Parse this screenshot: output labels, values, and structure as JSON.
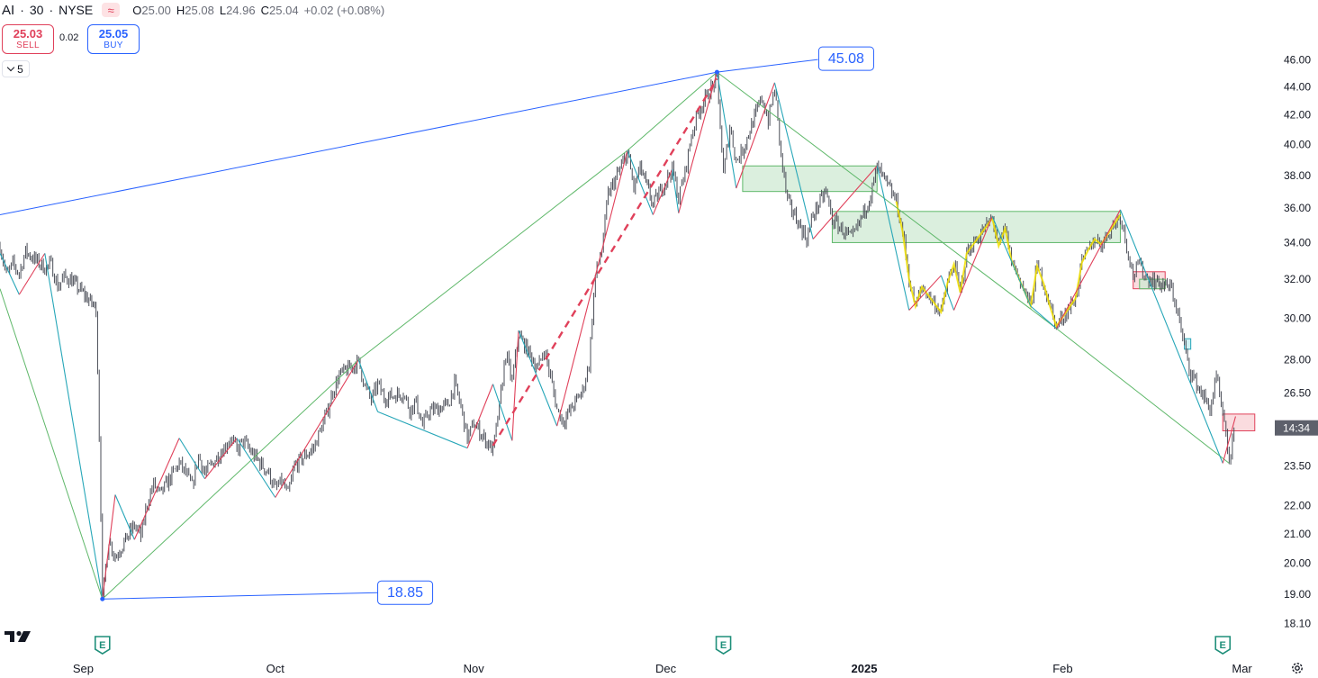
{
  "header": {
    "symbol": "AI",
    "interval": "30",
    "exchange": "NYSE",
    "wave_icon": "wave-icon",
    "ohlc": {
      "o_label": "O",
      "o": "25.00",
      "h_label": "H",
      "h": "25.08",
      "l_label": "L",
      "l": "24.96",
      "c_label": "C",
      "c": "25.04",
      "change": "+0.02 (+0.08%)"
    }
  },
  "trade": {
    "sell_price": "25.03",
    "sell_label": "SELL",
    "spread": "0.02",
    "buy_price": "25.05",
    "buy_label": "BUY"
  },
  "collapse": {
    "count": "5"
  },
  "colors": {
    "candle": "#4a4d57",
    "up_leg": "#e0405a",
    "down_leg": "#26a6b8",
    "major": "#5fb86a",
    "trend": "#2962ff",
    "yellow": "#f2e000",
    "zone_green": "#cfead3",
    "zone_red": "#f8d0d4"
  },
  "chart_data": {
    "type": "line",
    "y_scale": "log",
    "ylim": [
      17.9,
      48.0
    ],
    "y_ticks": [
      18.1,
      19.0,
      20.0,
      21.0,
      22.0,
      23.5,
      26.5,
      28.0,
      30.0,
      32.0,
      34.0,
      36.0,
      38.0,
      40.0,
      42.0,
      44.0,
      46.0
    ],
    "y_tick_labels": [
      "18.10",
      "19.00",
      "20.00",
      "21.00",
      "22.00",
      "23.50",
      "26.50",
      "28.00",
      "30.00",
      "32.00",
      "34.00",
      "36.00",
      "38.00",
      "40.00",
      "42.00",
      "44.00",
      "46.00"
    ],
    "x_labels": [
      "Sep",
      "Oct",
      "Nov",
      "Dec",
      "2025",
      "Feb",
      "Mar"
    ],
    "x_label_dates": [
      "2024-09-01",
      "2024-10-01",
      "2024-11-01",
      "2024-12-01",
      "2025-01-01",
      "2025-02-01",
      "2025-03-01"
    ],
    "x_range": [
      "2024-08-19",
      "2025-03-05"
    ],
    "price_tag": "14:34",
    "price_tag_value": 25.04,
    "earnings_marker": "E",
    "earnings_dates": [
      "2024-09-04",
      "2024-12-10",
      "2025-02-26"
    ],
    "grid": false,
    "price_path": [
      [
        "2024-08-19",
        33.8
      ],
      [
        "2024-08-20",
        32.2
      ],
      [
        "2024-08-21",
        32.8
      ],
      [
        "2024-08-22",
        32.3
      ],
      [
        "2024-08-23",
        33.5
      ],
      [
        "2024-08-26",
        32.6
      ],
      [
        "2024-08-27",
        32.8
      ],
      [
        "2024-08-28",
        31.6
      ],
      [
        "2024-08-29",
        32.1
      ],
      [
        "2024-08-30",
        32.0
      ],
      [
        "2024-09-03",
        30.5
      ],
      [
        "2024-09-04",
        18.85
      ],
      [
        "2024-09-05",
        20.8
      ],
      [
        "2024-09-06",
        20.2
      ],
      [
        "2024-09-09",
        21.3
      ],
      [
        "2024-09-10",
        20.9
      ],
      [
        "2024-09-11",
        22.1
      ],
      [
        "2024-09-12",
        22.8
      ],
      [
        "2024-09-13",
        22.4
      ],
      [
        "2024-09-16",
        23.6
      ],
      [
        "2024-09-17",
        23.2
      ],
      [
        "2024-09-18",
        22.7
      ],
      [
        "2024-09-19",
        23.9
      ],
      [
        "2024-09-20",
        23.2
      ],
      [
        "2024-09-23",
        24.2
      ],
      [
        "2024-09-24",
        24.6
      ],
      [
        "2024-09-25",
        24.1
      ],
      [
        "2024-09-26",
        24.5
      ],
      [
        "2024-09-27",
        24.1
      ],
      [
        "2024-09-30",
        23.2
      ],
      [
        "2024-10-01",
        22.6
      ],
      [
        "2024-10-02",
        22.9
      ],
      [
        "2024-10-03",
        22.4
      ],
      [
        "2024-10-04",
        23.5
      ],
      [
        "2024-10-07",
        24.2
      ],
      [
        "2024-10-08",
        24.9
      ],
      [
        "2024-10-09",
        25.6
      ],
      [
        "2024-10-10",
        26.6
      ],
      [
        "2024-10-11",
        27.3
      ],
      [
        "2024-10-14",
        27.9
      ],
      [
        "2024-10-15",
        26.8
      ],
      [
        "2024-10-16",
        26.2
      ],
      [
        "2024-10-17",
        26.9
      ],
      [
        "2024-10-18",
        26.3
      ],
      [
        "2024-10-21",
        26.5
      ],
      [
        "2024-10-22",
        25.8
      ],
      [
        "2024-10-23",
        26.1
      ],
      [
        "2024-10-24",
        25.1
      ],
      [
        "2024-10-25",
        25.7
      ],
      [
        "2024-10-28",
        26.0
      ],
      [
        "2024-10-29",
        26.9
      ],
      [
        "2024-10-30",
        25.9
      ],
      [
        "2024-10-31",
        24.6
      ],
      [
        "2024-11-01",
        25.2
      ],
      [
        "2024-11-04",
        24.1
      ],
      [
        "2024-11-05",
        25.9
      ],
      [
        "2024-11-06",
        28.3
      ],
      [
        "2024-11-07",
        27.0
      ],
      [
        "2024-11-08",
        29.2
      ],
      [
        "2024-11-11",
        27.6
      ],
      [
        "2024-11-12",
        28.5
      ],
      [
        "2024-11-13",
        27.2
      ],
      [
        "2024-11-14",
        25.8
      ],
      [
        "2024-11-15",
        25.3
      ],
      [
        "2024-11-18",
        26.6
      ],
      [
        "2024-11-19",
        27.8
      ],
      [
        "2024-11-20",
        32.2
      ],
      [
        "2024-11-21",
        33.6
      ],
      [
        "2024-11-22",
        36.8
      ],
      [
        "2024-11-25",
        39.4
      ],
      [
        "2024-11-26",
        37.2
      ],
      [
        "2024-11-27",
        38.5
      ],
      [
        "2024-11-29",
        36.2
      ],
      [
        "2024-12-02",
        38.4
      ],
      [
        "2024-12-03",
        36.6
      ],
      [
        "2024-12-04",
        38.2
      ],
      [
        "2024-12-05",
        40.6
      ],
      [
        "2024-12-06",
        42.2
      ],
      [
        "2024-12-09",
        44.6
      ],
      [
        "2024-12-10",
        38.0
      ],
      [
        "2024-12-11",
        41.2
      ],
      [
        "2024-12-12",
        38.9
      ],
      [
        "2024-12-13",
        39.6
      ],
      [
        "2024-12-16",
        43.2
      ],
      [
        "2024-12-17",
        41.6
      ],
      [
        "2024-12-18",
        43.9
      ],
      [
        "2024-12-19",
        39.2
      ],
      [
        "2024-12-20",
        36.4
      ],
      [
        "2024-12-23",
        34.2
      ],
      [
        "2024-12-24",
        35.6
      ],
      [
        "2024-12-26",
        37.0
      ],
      [
        "2024-12-27",
        35.3
      ],
      [
        "2024-12-30",
        34.2
      ],
      [
        "2024-12-31",
        34.9
      ],
      [
        "2025-01-02",
        36.8
      ],
      [
        "2025-01-03",
        38.5
      ],
      [
        "2025-01-06",
        36.4
      ],
      [
        "2025-01-07",
        34.6
      ],
      [
        "2025-01-08",
        32.0
      ],
      [
        "2025-01-09",
        30.6
      ],
      [
        "2025-01-10",
        31.6
      ],
      [
        "2025-01-13",
        30.3
      ],
      [
        "2025-01-14",
        31.8
      ],
      [
        "2025-01-15",
        32.8
      ],
      [
        "2025-01-16",
        31.3
      ],
      [
        "2025-01-17",
        33.4
      ],
      [
        "2025-01-21",
        35.4
      ],
      [
        "2025-01-22",
        33.8
      ],
      [
        "2025-01-23",
        34.8
      ],
      [
        "2025-01-24",
        33.0
      ],
      [
        "2025-01-27",
        30.6
      ],
      [
        "2025-01-28",
        32.7
      ],
      [
        "2025-01-29",
        31.8
      ],
      [
        "2025-01-30",
        30.6
      ],
      [
        "2025-01-31",
        29.6
      ],
      [
        "2025-02-03",
        31.0
      ],
      [
        "2025-02-04",
        32.9
      ],
      [
        "2025-02-05",
        33.6
      ],
      [
        "2025-02-06",
        34.2
      ],
      [
        "2025-02-07",
        33.9
      ],
      [
        "2025-02-10",
        35.6
      ],
      [
        "2025-02-11",
        33.8
      ],
      [
        "2025-02-12",
        32.2
      ],
      [
        "2025-02-13",
        32.8
      ],
      [
        "2025-02-14",
        32.1
      ],
      [
        "2025-02-18",
        31.5
      ],
      [
        "2025-02-19",
        30.2
      ],
      [
        "2025-02-20",
        28.6
      ],
      [
        "2025-02-21",
        27.4
      ],
      [
        "2025-02-24",
        25.8
      ],
      [
        "2025-02-25",
        27.2
      ],
      [
        "2025-02-26",
        25.5
      ],
      [
        "2025-02-27",
        23.7
      ],
      [
        "2025-02-28",
        25.04
      ]
    ],
    "zigzag_minor": [
      [
        "2024-08-19",
        33.4
      ],
      [
        "2024-08-22",
        31.2
      ],
      [
        "2024-08-26",
        33.4
      ],
      [
        "2024-09-04",
        18.85
      ],
      [
        "2024-09-06",
        22.4
      ],
      [
        "2024-09-09",
        20.8
      ],
      [
        "2024-09-16",
        24.6
      ],
      [
        "2024-09-20",
        23.0
      ],
      [
        "2024-09-25",
        24.6
      ],
      [
        "2024-10-01",
        22.3
      ],
      [
        "2024-10-14",
        28.0
      ],
      [
        "2024-10-17",
        25.7
      ],
      [
        "2024-10-31",
        24.2
      ],
      [
        "2024-11-04",
        26.9
      ],
      [
        "2024-11-07",
        24.5
      ],
      [
        "2024-11-08",
        29.4
      ],
      [
        "2024-11-14",
        25.1
      ],
      [
        "2024-11-25",
        39.6
      ],
      [
        "2024-11-29",
        35.6
      ],
      [
        "2024-12-02",
        38.4
      ],
      [
        "2024-12-03",
        35.7
      ],
      [
        "2024-12-09",
        45.08
      ],
      [
        "2024-12-12",
        37.2
      ],
      [
        "2024-12-18",
        44.3
      ],
      [
        "2024-12-24",
        34.2
      ],
      [
        "2025-01-03",
        38.6
      ],
      [
        "2025-01-08",
        30.4
      ],
      [
        "2025-01-13",
        32.2
      ],
      [
        "2025-01-15",
        30.4
      ],
      [
        "2025-01-21",
        35.5
      ],
      [
        "2025-01-27",
        30.6
      ],
      [
        "2025-01-31",
        29.5
      ],
      [
        "2025-02-10",
        35.9
      ],
      [
        "2025-02-26",
        23.6
      ],
      [
        "2025-02-28",
        25.5
      ]
    ],
    "zigzag_major": [
      [
        "2024-08-19",
        31.5
      ],
      [
        "2024-09-04",
        18.85
      ],
      [
        "2024-10-14",
        28.0
      ],
      [
        "2024-11-25",
        39.6
      ],
      [
        "2024-12-09",
        45.08
      ],
      [
        "2025-01-31",
        29.5
      ],
      [
        "2025-02-27",
        23.6
      ]
    ],
    "dashed_leg": [
      [
        "2024-11-04",
        24.3
      ],
      [
        "2024-12-09",
        44.6
      ]
    ],
    "trendline_top": {
      "from": [
        "2024-08-19",
        35.6
      ],
      "to": [
        "2024-12-09",
        45.08
      ],
      "label": "45.08"
    },
    "trendline_bottom": {
      "from": [
        "2024-09-04",
        18.85
      ],
      "to": [
        "2024-10-17",
        19.05
      ],
      "label": "18.85"
    },
    "zones": [
      {
        "from": "2024-12-13",
        "to": "2025-01-03",
        "low": 37.0,
        "high": 38.6,
        "kind": "green"
      },
      {
        "from": "2024-12-27",
        "to": "2025-02-10",
        "low": 34.0,
        "high": 35.8,
        "kind": "green"
      },
      {
        "from": "2025-02-12",
        "to": "2025-02-17",
        "low": 31.5,
        "high": 32.4,
        "kind": "red"
      },
      {
        "from": "2025-02-13",
        "to": "2025-02-17",
        "low": 31.5,
        "high": 32.0,
        "kind": "green"
      },
      {
        "from": "2025-02-20",
        "to": "2025-02-21",
        "low": 28.5,
        "high": 29.0,
        "kind": "cyan"
      },
      {
        "from": "2025-02-26",
        "to": "2025-03-03",
        "low": 24.9,
        "high": 25.6,
        "kind": "red"
      }
    ]
  }
}
